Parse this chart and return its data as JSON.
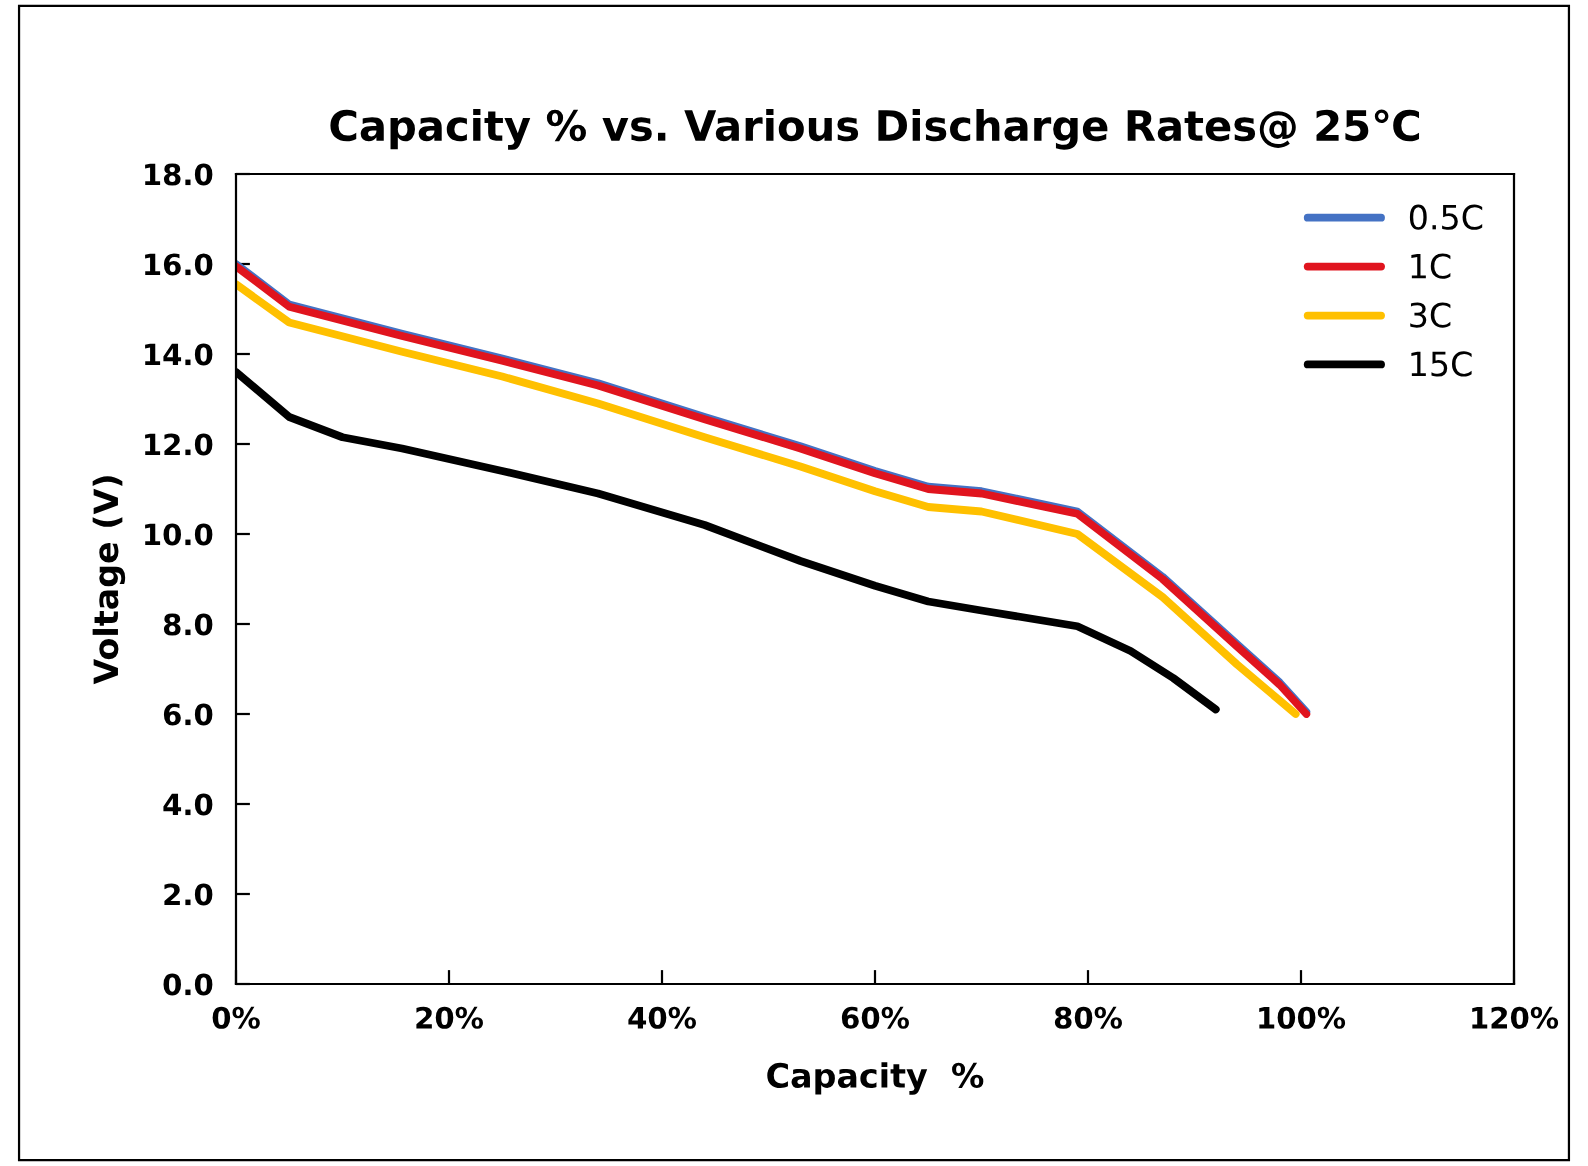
{
  "chart_data": {
    "type": "line",
    "title": "Capacity % vs. Various Discharge Rates@ 25℃",
    "xlabel": "Capacity  %",
    "ylabel": "Voltage (V)",
    "xlim": [
      0,
      1.2
    ],
    "xticks": [
      {
        "value": 0,
        "label": "0%"
      },
      {
        "value": 0.2,
        "label": "20%"
      },
      {
        "value": 0.4,
        "label": "40%"
      },
      {
        "value": 0.6,
        "label": "60%"
      },
      {
        "value": 0.8,
        "label": "80%"
      },
      {
        "value": 1.0,
        "label": "100%"
      },
      {
        "value": 1.2,
        "label": "120%"
      }
    ],
    "ylim": [
      0,
      18
    ],
    "yticks": [
      {
        "value": 0,
        "label": "0.0"
      },
      {
        "value": 2,
        "label": "2.0"
      },
      {
        "value": 4,
        "label": "4.0"
      },
      {
        "value": 6,
        "label": "6.0"
      },
      {
        "value": 8,
        "label": "8.0"
      },
      {
        "value": 10,
        "label": "10.0"
      },
      {
        "value": 12,
        "label": "12.0"
      },
      {
        "value": 14,
        "label": "14.0"
      },
      {
        "value": 16,
        "label": "16.0"
      },
      {
        "value": 18,
        "label": "18.0"
      }
    ],
    "grid": false,
    "legend": "top right",
    "marker": "none",
    "line_style": "solid",
    "series": [
      {
        "name": "0.5C",
        "color": "#4472c4",
        "x": [
          0,
          0.05,
          0.156,
          0.25,
          0.34,
          0.44,
          0.53,
          0.6,
          0.65,
          0.7,
          0.79,
          0.87,
          0.94,
          0.98,
          1.005
        ],
        "values": [
          16.0,
          15.1,
          14.45,
          13.9,
          13.35,
          12.6,
          11.95,
          11.4,
          11.05,
          10.95,
          10.5,
          9.05,
          7.55,
          6.7,
          6.05
        ]
      },
      {
        "name": "1C",
        "color": "#e0141e",
        "x": [
          0,
          0.05,
          0.156,
          0.25,
          0.34,
          0.44,
          0.53,
          0.6,
          0.65,
          0.7,
          0.79,
          0.87,
          0.94,
          0.98,
          1.005
        ],
        "values": [
          15.95,
          15.05,
          14.4,
          13.85,
          13.3,
          12.55,
          11.9,
          11.35,
          11.0,
          10.9,
          10.45,
          9.0,
          7.5,
          6.65,
          6.0
        ]
      },
      {
        "name": "3C",
        "color": "#ffc000",
        "x": [
          0,
          0.05,
          0.156,
          0.25,
          0.34,
          0.44,
          0.53,
          0.6,
          0.65,
          0.7,
          0.79,
          0.87,
          0.94,
          0.98,
          0.995
        ],
        "values": [
          15.55,
          14.7,
          14.05,
          13.5,
          12.9,
          12.15,
          11.5,
          10.95,
          10.6,
          10.5,
          10.0,
          8.6,
          7.1,
          6.3,
          6.0
        ]
      },
      {
        "name": "15C",
        "color": "#000000",
        "x": [
          0,
          0.05,
          0.1,
          0.156,
          0.25,
          0.34,
          0.44,
          0.53,
          0.6,
          0.65,
          0.7,
          0.79,
          0.84,
          0.88,
          0.92
        ],
        "values": [
          13.6,
          12.6,
          12.15,
          11.9,
          11.4,
          10.9,
          10.2,
          9.4,
          8.85,
          8.5,
          8.3,
          7.95,
          7.4,
          6.8,
          6.1
        ]
      }
    ]
  }
}
